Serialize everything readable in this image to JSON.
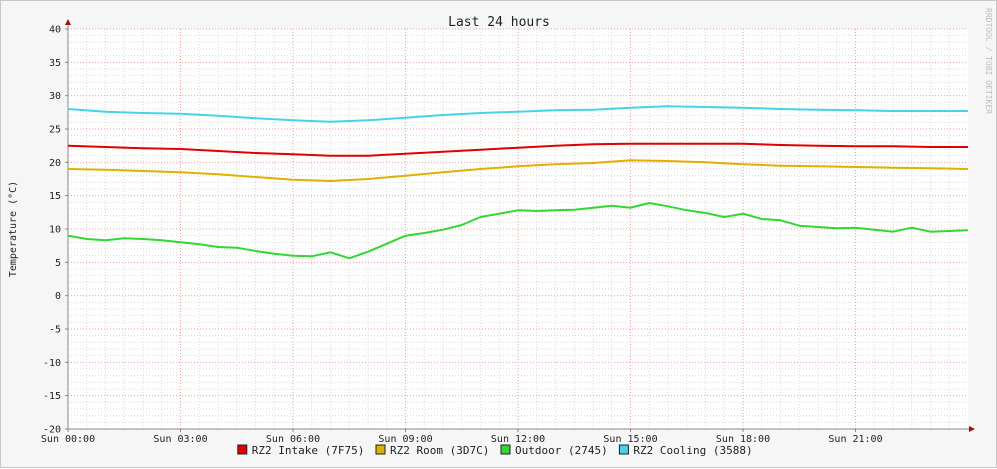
{
  "chart_data": {
    "type": "line",
    "title": "Last 24 hours",
    "xlabel": "",
    "ylabel": "Temperature (°C)",
    "ylim": [
      -20,
      40
    ],
    "yticks": [
      40,
      35,
      30,
      25,
      20,
      15,
      10,
      5,
      0,
      -5,
      -10,
      -15,
      -20
    ],
    "xlim": [
      0,
      24
    ],
    "xticks": [
      {
        "x": 0,
        "label": "Sun 00:00"
      },
      {
        "x": 3,
        "label": "Sun 03:00"
      },
      {
        "x": 6,
        "label": "Sun 06:00"
      },
      {
        "x": 9,
        "label": "Sun 09:00"
      },
      {
        "x": 12,
        "label": "Sun 12:00"
      },
      {
        "x": 15,
        "label": "Sun 15:00"
      },
      {
        "x": 18,
        "label": "Sun 18:00"
      },
      {
        "x": 21,
        "label": "Sun 21:00"
      }
    ],
    "grid": true,
    "legend_position": "bottom",
    "side_label": "RRDTOOL / TOBI OETIKER",
    "series": [
      {
        "name": "RZ2 Intake (7F75)",
        "color": "#e00000",
        "x": [
          0,
          1,
          2,
          3,
          4,
          5,
          6,
          7,
          8,
          9,
          10,
          11,
          12,
          13,
          14,
          15,
          16,
          17,
          18,
          19,
          20,
          21,
          22,
          23,
          24
        ],
        "values": [
          22.5,
          22.3,
          22.1,
          22.0,
          21.7,
          21.4,
          21.2,
          21.0,
          21.0,
          21.3,
          21.6,
          21.9,
          22.2,
          22.5,
          22.7,
          22.8,
          22.8,
          22.8,
          22.8,
          22.6,
          22.5,
          22.4,
          22.4,
          22.3,
          22.3
        ]
      },
      {
        "name": "RZ2 Room (3D7C)",
        "color": "#e0b000",
        "x": [
          0,
          1,
          2,
          3,
          4,
          5,
          6,
          7,
          8,
          9,
          10,
          11,
          12,
          13,
          14,
          15,
          16,
          17,
          18,
          19,
          20,
          21,
          22,
          23,
          24
        ],
        "values": [
          19.0,
          18.9,
          18.7,
          18.5,
          18.2,
          17.8,
          17.4,
          17.2,
          17.5,
          18.0,
          18.5,
          19.0,
          19.4,
          19.7,
          19.9,
          20.3,
          20.2,
          20.0,
          19.7,
          19.5,
          19.4,
          19.3,
          19.2,
          19.1,
          19.0
        ]
      },
      {
        "name": "Outdoor (2745)",
        "color": "#33d633",
        "x": [
          0,
          0.5,
          1,
          1.5,
          2,
          2.5,
          3,
          3.5,
          4,
          4.5,
          5,
          5.5,
          6,
          6.5,
          7,
          7.5,
          8,
          8.5,
          9,
          9.5,
          10,
          10.5,
          11,
          11.5,
          12,
          12.5,
          13,
          13.5,
          14,
          14.5,
          15,
          15.5,
          16,
          16.5,
          17,
          17.5,
          18,
          18.5,
          19,
          19.5,
          20,
          20.5,
          21,
          21.5,
          22,
          22.5,
          23,
          23.5,
          24
        ],
        "values": [
          9.0,
          8.5,
          8.3,
          8.6,
          8.5,
          8.3,
          8.0,
          7.7,
          7.3,
          7.2,
          6.7,
          6.3,
          6.0,
          5.9,
          6.5,
          5.6,
          6.6,
          7.8,
          9.0,
          9.4,
          9.9,
          10.6,
          11.8,
          12.3,
          12.8,
          12.7,
          12.8,
          12.9,
          13.2,
          13.5,
          13.2,
          13.9,
          13.4,
          12.8,
          12.4,
          11.8,
          12.3,
          11.5,
          11.3,
          10.5,
          10.3,
          10.1,
          10.2,
          9.9,
          9.6,
          10.2,
          9.6,
          9.7,
          9.8
        ]
      },
      {
        "name": "RZ2 Cooling (3588)",
        "color": "#44d4e8",
        "x": [
          0,
          1,
          2,
          3,
          4,
          5,
          6,
          7,
          8,
          9,
          10,
          11,
          12,
          13,
          14,
          15,
          16,
          17,
          18,
          19,
          20,
          21,
          22,
          23,
          24
        ],
        "values": [
          28.0,
          27.6,
          27.4,
          27.3,
          27.0,
          26.6,
          26.3,
          26.1,
          26.3,
          26.7,
          27.1,
          27.4,
          27.6,
          27.8,
          27.9,
          28.2,
          28.4,
          28.3,
          28.2,
          28.0,
          27.9,
          27.8,
          27.7,
          27.7,
          27.7
        ]
      }
    ]
  }
}
